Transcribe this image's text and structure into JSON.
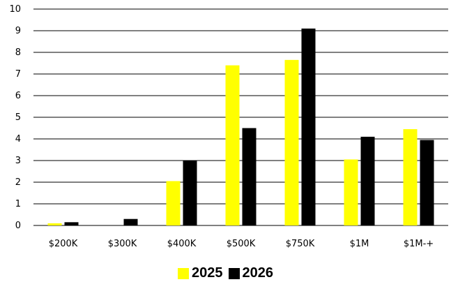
{
  "chart_data": {
    "type": "bar",
    "categories": [
      "$200K",
      "$300K",
      "$400K",
      "$500K",
      "$750K",
      "$1M",
      "$1M-+"
    ],
    "series": [
      {
        "name": "2025",
        "color": "#FFFF00",
        "values": [
          0.1,
          0,
          2.05,
          7.4,
          7.65,
          3.05,
          4.45
        ]
      },
      {
        "name": "2026",
        "color": "#000000",
        "values": [
          0.15,
          0.3,
          3.0,
          4.5,
          9.1,
          4.1,
          3.95
        ]
      }
    ],
    "yticks": [
      "0",
      "1",
      "2",
      "3",
      "4",
      "5",
      "6",
      "7",
      "8",
      "9",
      "10"
    ],
    "ylim": [
      0,
      10
    ],
    "grid": true,
    "legend_position": "bottom"
  }
}
